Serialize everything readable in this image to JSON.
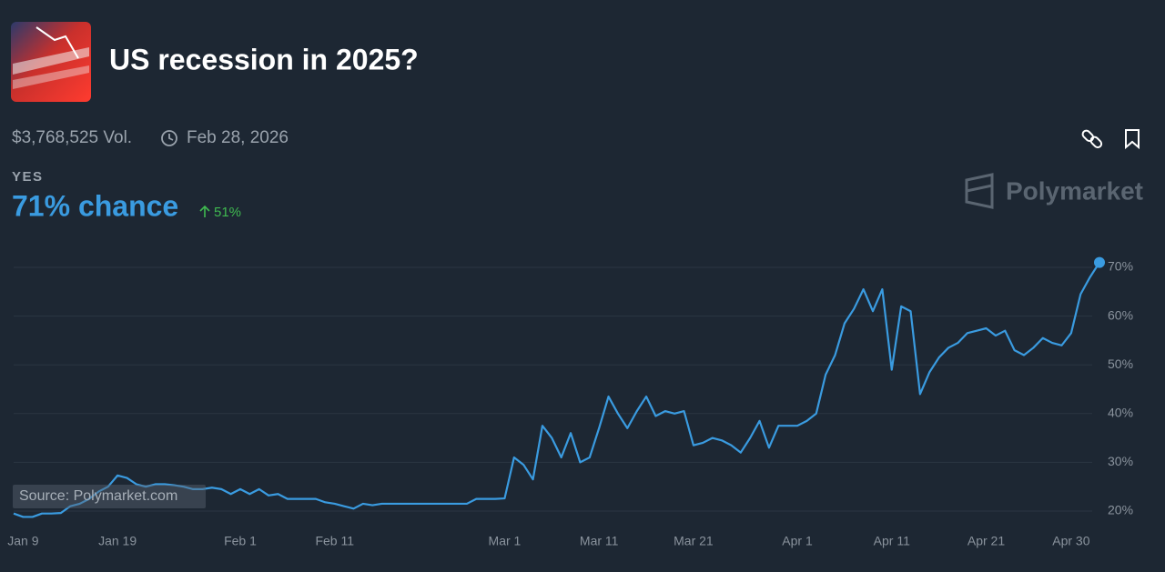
{
  "chart_data": {
    "type": "line",
    "title": "US recession in 2025?",
    "volume": "$3,768,525 Vol.",
    "end_date": "Feb 28, 2026",
    "outcome": "YES",
    "headline": "71% chance",
    "change": "51%",
    "brand": "Polymarket",
    "source": "Source: Polymarket.com",
    "color": "#3a9be0",
    "grid": true,
    "xlim": [
      8,
      123
    ],
    "xticks": [
      {
        "value": 9,
        "label": "Jan 9"
      },
      {
        "value": 19,
        "label": "Jan 19"
      },
      {
        "value": 32,
        "label": "Feb 1"
      },
      {
        "value": 42,
        "label": "Feb 11"
      },
      {
        "value": 60,
        "label": "Mar 1"
      },
      {
        "value": 70,
        "label": "Mar 11"
      },
      {
        "value": 80,
        "label": "Mar 21"
      },
      {
        "value": 91,
        "label": "Apr 1"
      },
      {
        "value": 101,
        "label": "Apr 11"
      },
      {
        "value": 111,
        "label": "Apr 21"
      },
      {
        "value": 120,
        "label": "Apr 30"
      }
    ],
    "ylim": [
      18,
      72
    ],
    "yticks": [
      {
        "value": 20,
        "label": "20%"
      },
      {
        "value": 30,
        "label": "30%"
      },
      {
        "value": 40,
        "label": "40%"
      },
      {
        "value": 50,
        "label": "50%"
      },
      {
        "value": 60,
        "label": "60%"
      },
      {
        "value": 70,
        "label": "70%"
      }
    ],
    "x": [
      8,
      9,
      10,
      11,
      12,
      13,
      14,
      15,
      16,
      17,
      18,
      19,
      20,
      21,
      22,
      23,
      24,
      25,
      26,
      27,
      28,
      29,
      30,
      31,
      32,
      33,
      34,
      35,
      36,
      37,
      38,
      39,
      40,
      41,
      42,
      43,
      44,
      45,
      46,
      47,
      48,
      49,
      50,
      51,
      52,
      53,
      54,
      55,
      56,
      57,
      58,
      59,
      60,
      61,
      62,
      63,
      64,
      65,
      66,
      67,
      68,
      69,
      70,
      71,
      72,
      73,
      74,
      75,
      76,
      77,
      78,
      79,
      80,
      81,
      82,
      83,
      84,
      85,
      86,
      87,
      88,
      89,
      90,
      91,
      92,
      93,
      94,
      95,
      96,
      97,
      98,
      99,
      100,
      101,
      102,
      103,
      104,
      105,
      106,
      107,
      108,
      109,
      110,
      111,
      112,
      113,
      114,
      115,
      116,
      117,
      118,
      119,
      120,
      121,
      122,
      123
    ],
    "values": [
      19.5,
      18.8,
      18.8,
      19.5,
      19.5,
      19.6,
      21,
      21.5,
      22.5,
      24,
      25,
      27.3,
      26.8,
      25.5,
      25,
      25.5,
      25.5,
      25.3,
      25,
      24.5,
      24.5,
      24.8,
      24.5,
      23.5,
      24.5,
      23.5,
      24.5,
      23.2,
      23.5,
      22.5,
      22.5,
      22.5,
      22.5,
      21.8,
      21.5,
      21,
      20.5,
      21.5,
      21.2,
      21.5,
      21.5,
      21.5,
      21.5,
      21.5,
      21.5,
      21.5,
      21.5,
      21.5,
      21.5,
      22.5,
      22.5,
      22.5,
      22.6,
      31,
      29.5,
      26.5,
      37.5,
      35,
      31,
      36,
      30,
      31,
      37,
      43.5,
      40,
      37,
      40.5,
      43.5,
      39.5,
      40.5,
      40,
      40.5,
      33.5,
      34,
      35,
      34.5,
      33.5,
      32,
      35,
      38.5,
      33,
      37.5,
      37.5,
      37.5,
      38.5,
      40,
      48,
      52,
      58.5,
      61.5,
      65.5,
      61,
      65.5,
      49,
      62,
      61,
      44,
      48.5,
      51.5,
      53.5,
      54.5,
      56.5,
      57,
      57.5,
      56,
      57,
      53,
      52,
      53.5,
      55.5,
      54.5,
      54,
      56.5,
      64.5,
      68,
      71
    ]
  }
}
